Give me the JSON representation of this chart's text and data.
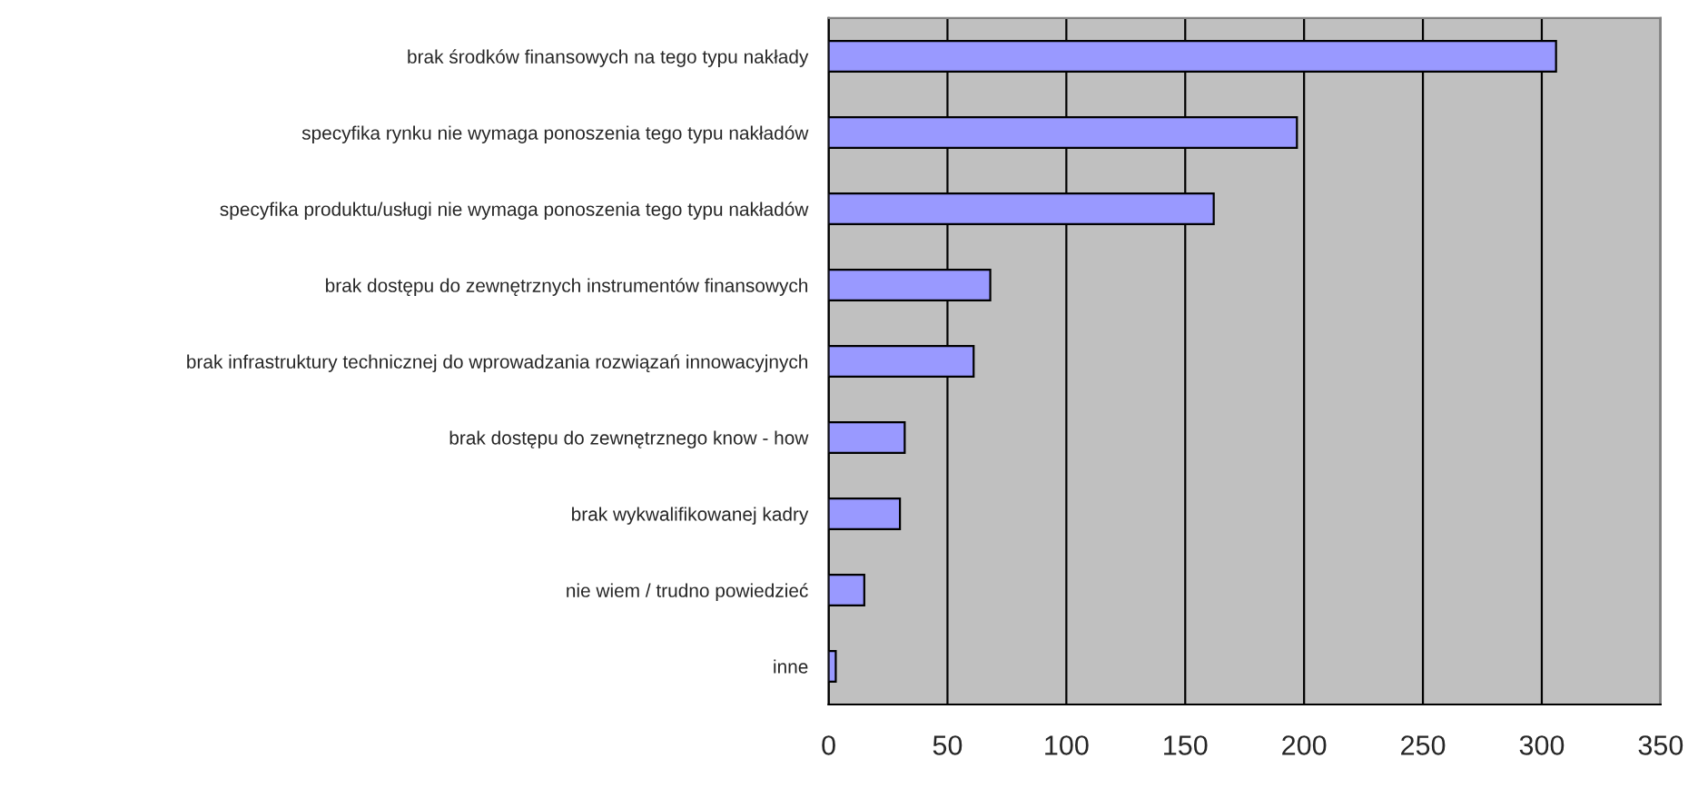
{
  "chart_data": {
    "type": "bar",
    "orientation": "horizontal",
    "categories": [
      "brak środków finansowych na tego typu nakłady",
      "specyfika rynku nie wymaga ponoszenia tego typu nakładów",
      "specyfika produktu/usługi nie wymaga ponoszenia tego typu nakładów",
      "brak dostępu do zewnętrznych instrumentów finansowych",
      "brak infrastruktury technicznej do wprowadzania rozwiązań innowacyjnych",
      "brak dostępu do zewnętrznego know - how",
      "brak wykwalifikowanej kadry",
      "nie wiem / trudno powiedzieć",
      "inne"
    ],
    "values": [
      306,
      197,
      162,
      68,
      61,
      32,
      30,
      15,
      3
    ],
    "color": "#9999ff",
    "xlim": [
      0,
      350
    ],
    "xticks": [
      0,
      50,
      100,
      150,
      200,
      250,
      300,
      350
    ],
    "grid": "x",
    "legend": false
  }
}
